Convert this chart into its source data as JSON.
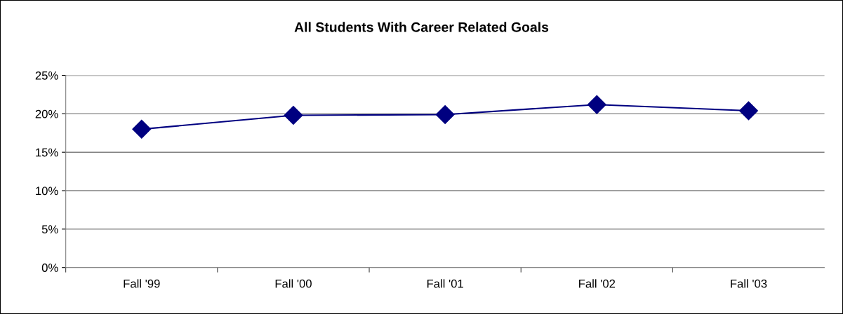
{
  "chart_data": {
    "type": "line",
    "title": "All Students With Career Related Goals",
    "categories": [
      "Fall '99",
      "Fall '00",
      "Fall '01",
      "Fall '02",
      "Fall '03"
    ],
    "series": [
      {
        "color": "#000080",
        "values": [
          18.0,
          19.8,
          19.9,
          21.2,
          20.4
        ]
      }
    ],
    "ylim": [
      0,
      25
    ],
    "yticks": [
      {
        "value": 0,
        "label": "0%"
      },
      {
        "value": 5,
        "label": "5%"
      },
      {
        "value": 10,
        "label": "10%"
      },
      {
        "value": 15,
        "label": "15%"
      },
      {
        "value": 20,
        "label": "20%"
      },
      {
        "value": 25,
        "label": "25%"
      }
    ],
    "grid": "y",
    "marker": "diamond",
    "line_style": "solid"
  }
}
